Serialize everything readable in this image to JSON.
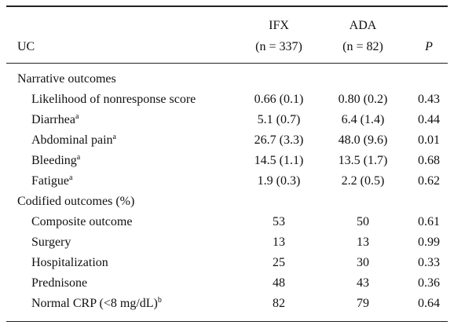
{
  "header": {
    "columns": [
      {
        "label": "UC"
      },
      {
        "label": "IFX",
        "sub": "(n = 337)"
      },
      {
        "label": "ADA",
        "sub": "(n = 82)"
      },
      {
        "label": "P"
      }
    ]
  },
  "sections": [
    {
      "title": "Narrative outcomes",
      "rows": [
        {
          "label": "Likelihood of nonresponse score",
          "cells": [
            "0.66 (0.1)",
            "0.80 (0.2)",
            "0.43"
          ]
        },
        {
          "label": "Diarrhea",
          "note": "a",
          "cells": [
            "5.1 (0.7)",
            "6.4 (1.4)",
            "0.44"
          ]
        },
        {
          "label": "Abdominal pain",
          "note": "a",
          "cells": [
            "26.7 (3.3)",
            "48.0 (9.6)",
            "0.01"
          ]
        },
        {
          "label": "Bleeding",
          "note": "a",
          "cells": [
            "14.5 (1.1)",
            "13.5 (1.7)",
            "0.68"
          ]
        },
        {
          "label": "Fatigue",
          "note": "a",
          "cells": [
            "1.9 (0.3)",
            "2.2 (0.5)",
            "0.62"
          ]
        }
      ]
    },
    {
      "title": "Codified outcomes (%)",
      "rows": [
        {
          "label": "Composite outcome",
          "cells": [
            "53",
            "50",
            "0.61"
          ]
        },
        {
          "label": "Surgery",
          "cells": [
            "13",
            "13",
            "0.99"
          ]
        },
        {
          "label": "Hospitalization",
          "cells": [
            "25",
            "30",
            "0.33"
          ]
        },
        {
          "label": "Prednisone",
          "cells": [
            "48",
            "43",
            "0.36"
          ]
        },
        {
          "label": "Normal CRP (<8 mg/dL)",
          "note": "b",
          "cells": [
            "82",
            "79",
            "0.64"
          ]
        }
      ]
    }
  ]
}
